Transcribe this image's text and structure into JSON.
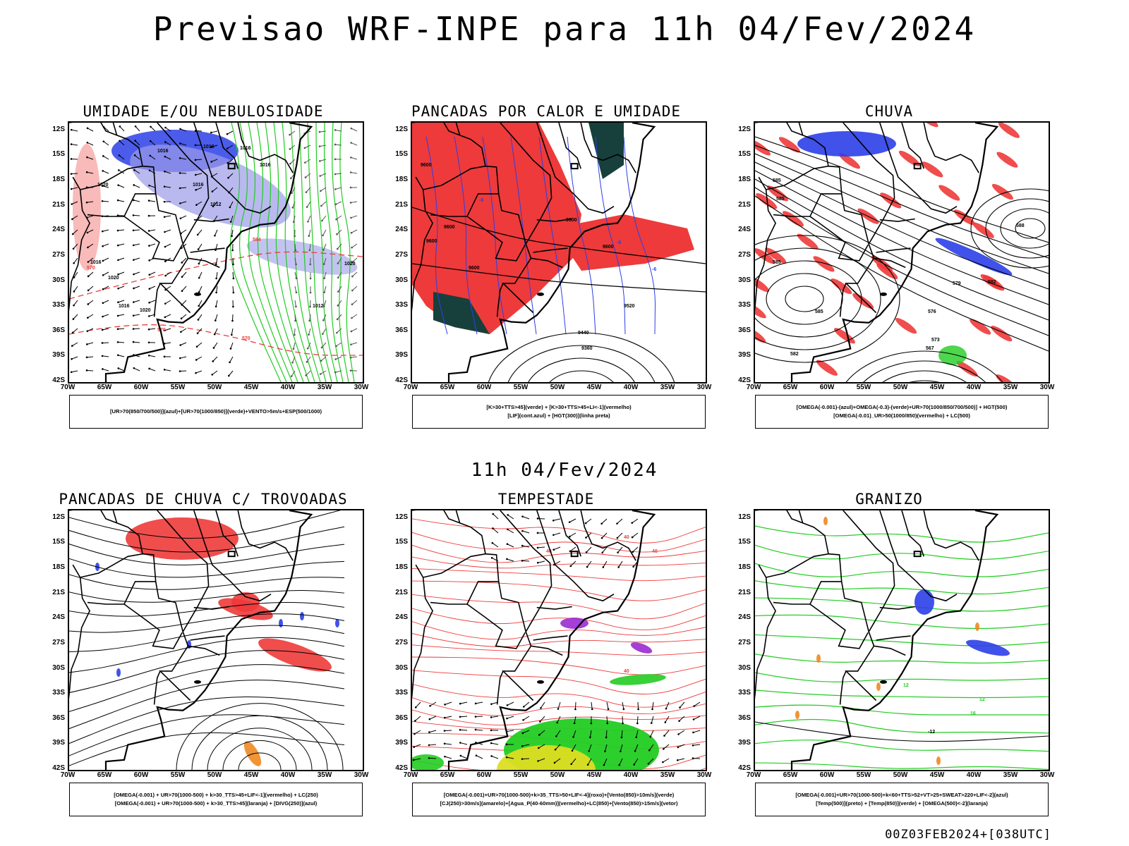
{
  "header": {
    "title": "Previsao WRF-INPE  para 11h 04/Fev/2024",
    "mid_title": "11h 04/Fev/2024",
    "footer": "00Z03FEB2024+[038UTC]"
  },
  "axes": {
    "lat_labels": [
      "12S",
      "15S",
      "18S",
      "21S",
      "24S",
      "27S",
      "30S",
      "33S",
      "36S",
      "39S",
      "42S"
    ],
    "lon_labels": [
      "70W",
      "65W",
      "60W",
      "55W",
      "50W",
      "45W",
      "40W",
      "35W",
      "30W"
    ]
  },
  "colors": {
    "red": "#ee3a3a",
    "green": "#22cc22",
    "blue": "#2b3fe8",
    "lavender": "#9b9be8",
    "dark_teal": "#17403c",
    "orange": "#ee8822",
    "yellow": "#dddd22",
    "purple": "#9a2bd0",
    "black": "#000000"
  },
  "panels": [
    {
      "title": "UMIDADE E/OU NEBULOSIDADE",
      "legend": [
        "[UR>70(850/700/500)](azul)+[UR>70(1000/850)](verde)+VENTO>5m/s+ESP(500/1000)"
      ],
      "contour_labels": [
        "1016",
        "1016",
        "1016",
        "1016",
        "1020",
        "1016",
        "1012",
        "1016",
        "1020",
        "1020",
        "1012",
        "1020",
        "570",
        "570",
        "584",
        "570",
        "1016"
      ]
    },
    {
      "title": "PANCADAS POR CALOR E UMIDADE",
      "legend": [
        "[K>30+TTS>45](verde) + [K>30+TTS>45+LI<-1](vermelho)",
        "[LIF](cont.azul) + [HGT(300)](linha preta)"
      ],
      "contour_labels": [
        "9600",
        "9600",
        "9600",
        "9600",
        "9600",
        "9600",
        "9520",
        "9440",
        "9360",
        "-6",
        "-6",
        "-6"
      ]
    },
    {
      "title": "CHUVA",
      "legend": [
        "[OMEGA(-0.001)-(azul)+OMEGA(-0.3)-(verde)+UR>70(1000/850/700/500)] + HGT(500)",
        "[OMEGA(-0.01)_UR>50(1000/850)(vermelho) + LC(500)"
      ],
      "contour_labels": [
        "585",
        "585",
        "585",
        "585",
        "582",
        "579",
        "576",
        "573",
        "567",
        "582",
        "588"
      ]
    },
    {
      "title": "PANCADAS DE CHUVA C/ TROVOADAS",
      "legend": [
        "[OMEGA(-0.001) + UR>70(1000-500) + k>30_TTS>45+LIF<-1](vermelho) + LC(250)",
        "[OMEGA(-0.001) + UR>70(1000-500) + k>30_TTS>45](laranja) + [DIVG(250)](azul)"
      ],
      "contour_labels": []
    },
    {
      "title": "TEMPESTADE",
      "legend": [
        "[OMEGA(-0.001)+UR>70(1000-500)+k>35_TTS>50+LIF<-4](roxo)+[Vento(850)>10m/s](verde)",
        "[CJ(250)>30m/s](amarelo)+[Agua_P(40-60mm)](vermelho)+LC(850)+[Vento(850)>15m/s](vetor)"
      ],
      "contour_labels": [
        "40",
        "40",
        "40",
        "40"
      ]
    },
    {
      "title": "GRANIZO",
      "legend": [
        "[OMEGA(-0.001)+UR>70(1000-500)+k<60+TTS>52+VT>25+SWEAT>220+LIF<-2](azul)",
        "[Temp(500)](preto) + [Temp(850)](verde) + [OMEGA(500)<-2](laranja)"
      ],
      "contour_labels": [
        "-12",
        "12",
        "16",
        "12"
      ]
    }
  ]
}
